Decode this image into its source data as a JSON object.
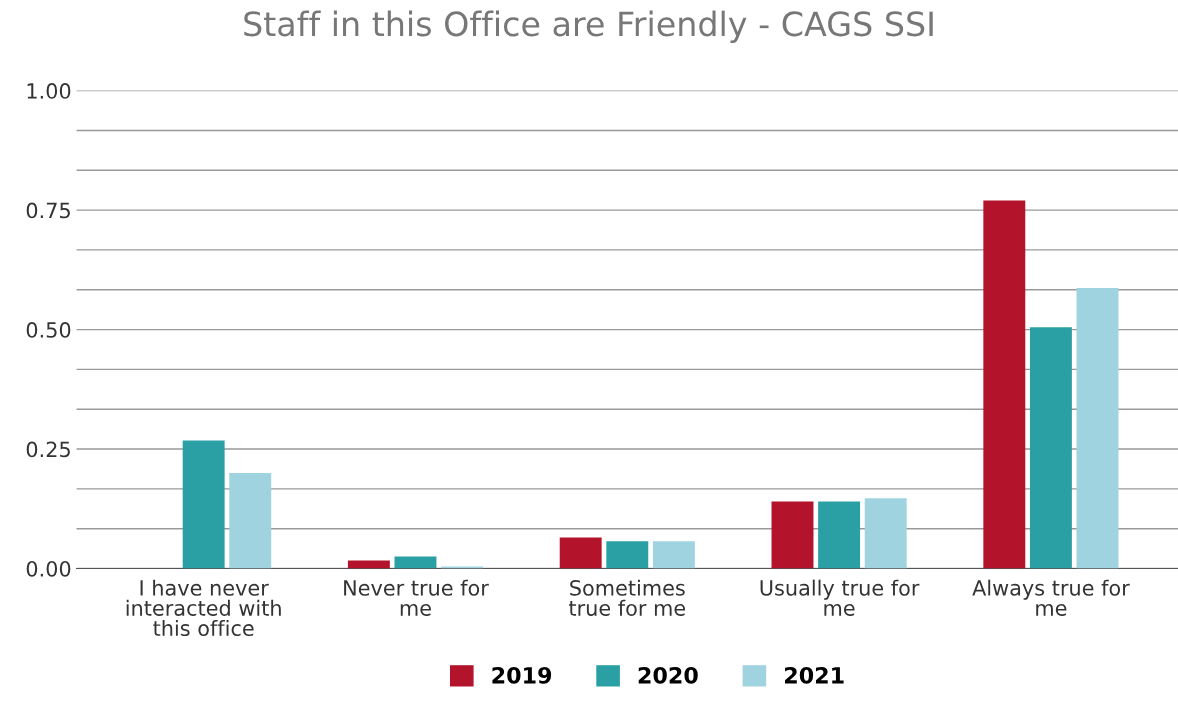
{
  "chart_data": {
    "type": "bar",
    "title": "Staff in this Office are Friendly - CAGS SSI",
    "categories": [
      "I have never\ninteracted with\nthis office",
      "Never true for\nme",
      "Sometimes\ntrue for me",
      "Usually true for\nme",
      "Always true for\nme"
    ],
    "series": [
      {
        "name": "2019",
        "color": "#b3132b",
        "values": [
          0,
          0.017,
          0.065,
          0.14,
          0.77
        ]
      },
      {
        "name": "2020",
        "color": "#2aa0a4",
        "values": [
          0.268,
          0.025,
          0.057,
          0.14,
          0.505
        ]
      },
      {
        "name": "2021",
        "color": "#9fd3df",
        "values": [
          0.2,
          0.004,
          0.057,
          0.147,
          0.587
        ]
      }
    ],
    "ylim": [
      0,
      1
    ],
    "yticks": [
      {
        "value": 0,
        "label": "0.00"
      },
      {
        "value": 0.0833,
        "label": null
      },
      {
        "value": 0.1667,
        "label": null
      },
      {
        "value": 0.25,
        "label": "0.25"
      },
      {
        "value": 0.3333,
        "label": null
      },
      {
        "value": 0.4167,
        "label": null
      },
      {
        "value": 0.5,
        "label": "0.50"
      },
      {
        "value": 0.5833,
        "label": null
      },
      {
        "value": 0.6667,
        "label": null
      },
      {
        "value": 0.75,
        "label": "0.75"
      },
      {
        "value": 0.8333,
        "label": null
      },
      {
        "value": 0.9167,
        "label": null
      },
      {
        "value": 1,
        "label": "1.00"
      }
    ],
    "grid": "y",
    "legend": "bottom"
  }
}
